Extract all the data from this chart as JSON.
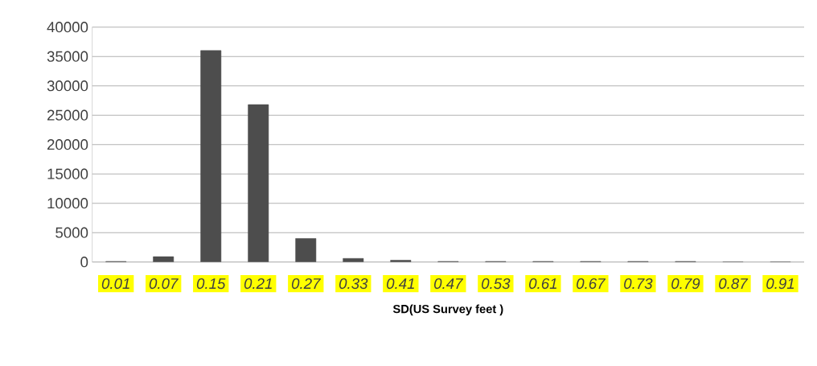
{
  "chart_data": {
    "type": "bar",
    "xlabel": "SD(US Survey feet )",
    "categories": [
      "0.01",
      "0.07",
      "0.15",
      "0.21",
      "0.27",
      "0.33",
      "0.41",
      "0.47",
      "0.53",
      "0.61",
      "0.67",
      "0.73",
      "0.79",
      "0.87",
      "0.91"
    ],
    "values": [
      100,
      900,
      36000,
      26800,
      4000,
      600,
      300,
      100,
      100,
      100,
      100,
      100,
      100,
      0,
      0
    ],
    "color": "#4d4d4d",
    "ylim": [
      0,
      40000
    ],
    "yticks": [
      0,
      5000,
      10000,
      15000,
      20000,
      25000,
      30000,
      35000,
      40000
    ],
    "grid": "y"
  }
}
